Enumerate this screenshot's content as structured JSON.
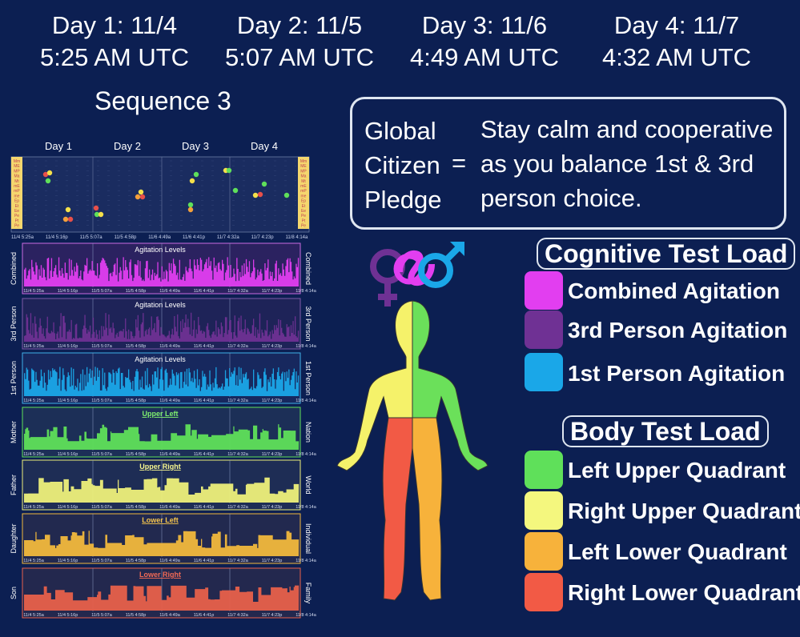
{
  "days": [
    {
      "date": "Day 1:  11/4",
      "time": "5:25 AM UTC"
    },
    {
      "date": "Day 2:  11/5",
      "time": "5:07 AM UTC"
    },
    {
      "date": "Day 3:  11/6",
      "time": "4:49 AM UTC"
    },
    {
      "date": "Day 4:  11/7",
      "time": "4:32 AM UTC"
    }
  ],
  "sequence_title": "Sequence 3",
  "pledge": {
    "label_lines": [
      "Global",
      "Citizen",
      "Pledge"
    ],
    "equals": "=",
    "text_lines": [
      "Stay calm and cooperative",
      "as you balance 1st & 3rd",
      "person choice."
    ]
  },
  "cognitive_legend": {
    "heading": "Cognitive Test Load",
    "items": [
      {
        "label": "Combined Agitation",
        "color": "#e23ef0"
      },
      {
        "label": "3rd Person Agitation",
        "color": "#6f3194"
      },
      {
        "label": "1st Person Agitation",
        "color": "#1aa7e8"
      }
    ]
  },
  "body_legend": {
    "heading": "Body Test Load",
    "items": [
      {
        "label": "Left Upper Quadrant",
        "color": "#5fe05a"
      },
      {
        "label": "Right Upper Quadrant",
        "color": "#f4f77e"
      },
      {
        "label": "Left Lower Quadrant",
        "color": "#f7b23b"
      },
      {
        "label": "Right Lower Quadrant",
        "color": "#f25a45"
      }
    ]
  },
  "chart_data": {
    "type": "area",
    "day_labels": [
      "Day 1",
      "Day 2",
      "Day 3",
      "Day 4"
    ],
    "x_ticks": [
      "11/4 5:25a",
      "11/4 5:16p",
      "11/5 5:07a",
      "11/5 4:58p",
      "11/6 4:49a",
      "11/6 4:41p",
      "11/7 4:32a",
      "11/7 4:23p",
      "11/8 4:14a"
    ],
    "top_scale_labels": [
      "Mm",
      "ME",
      "MP",
      "Ma",
      "Mt",
      "mE",
      "mP",
      "me",
      "Ep",
      "Et",
      "Ee",
      "Pe",
      "Pt",
      "Pe"
    ],
    "panels": [
      {
        "id": "combined",
        "left": "Combined",
        "right": "Combined",
        "title": "Agitation Levels",
        "color": "#e23ef0",
        "bg": "#2b2260",
        "border": "#c86be0",
        "title_color": "#ffffff",
        "underline": false
      },
      {
        "id": "third",
        "left": "3rd Person",
        "right": "3rd Person",
        "title": "Agitation Levels",
        "color": "#6f3194",
        "bg": "#1e2358",
        "border": "#7f5aa8",
        "title_color": "#ffffff",
        "underline": false
      },
      {
        "id": "first",
        "left": "1st Person",
        "right": "1st Person",
        "title": "Agitation Levels",
        "color": "#1aa7e8",
        "bg": "#17285e",
        "border": "#3fb0e8",
        "title_color": "#ffffff",
        "underline": false
      },
      {
        "id": "upper-left",
        "left": "Mother",
        "right": "Nation",
        "title": "Upper Left",
        "color": "#5fe05a",
        "bg": "#1c2f57",
        "border": "#5fe05a",
        "title_color": "#7ff06f",
        "underline": true
      },
      {
        "id": "upper-right",
        "left": "Father",
        "right": "World",
        "title": "Upper Right",
        "color": "#eef07a",
        "bg": "#1e2d55",
        "border": "#eef07a",
        "title_color": "#f7f78f",
        "underline": true
      },
      {
        "id": "lower-left",
        "left": "Daughter",
        "right": "Individual",
        "title": "Lower Left",
        "color": "#f2b83c",
        "bg": "#22294f",
        "border": "#f2b83c",
        "title_color": "#f7c64d",
        "underline": true
      },
      {
        "id": "lower-right",
        "left": "Son",
        "right": "Family",
        "title": "Lower Right",
        "color": "#e8604a",
        "bg": "#23284e",
        "border": "#e8604a",
        "title_color": "#f26a55",
        "underline": true
      }
    ]
  }
}
